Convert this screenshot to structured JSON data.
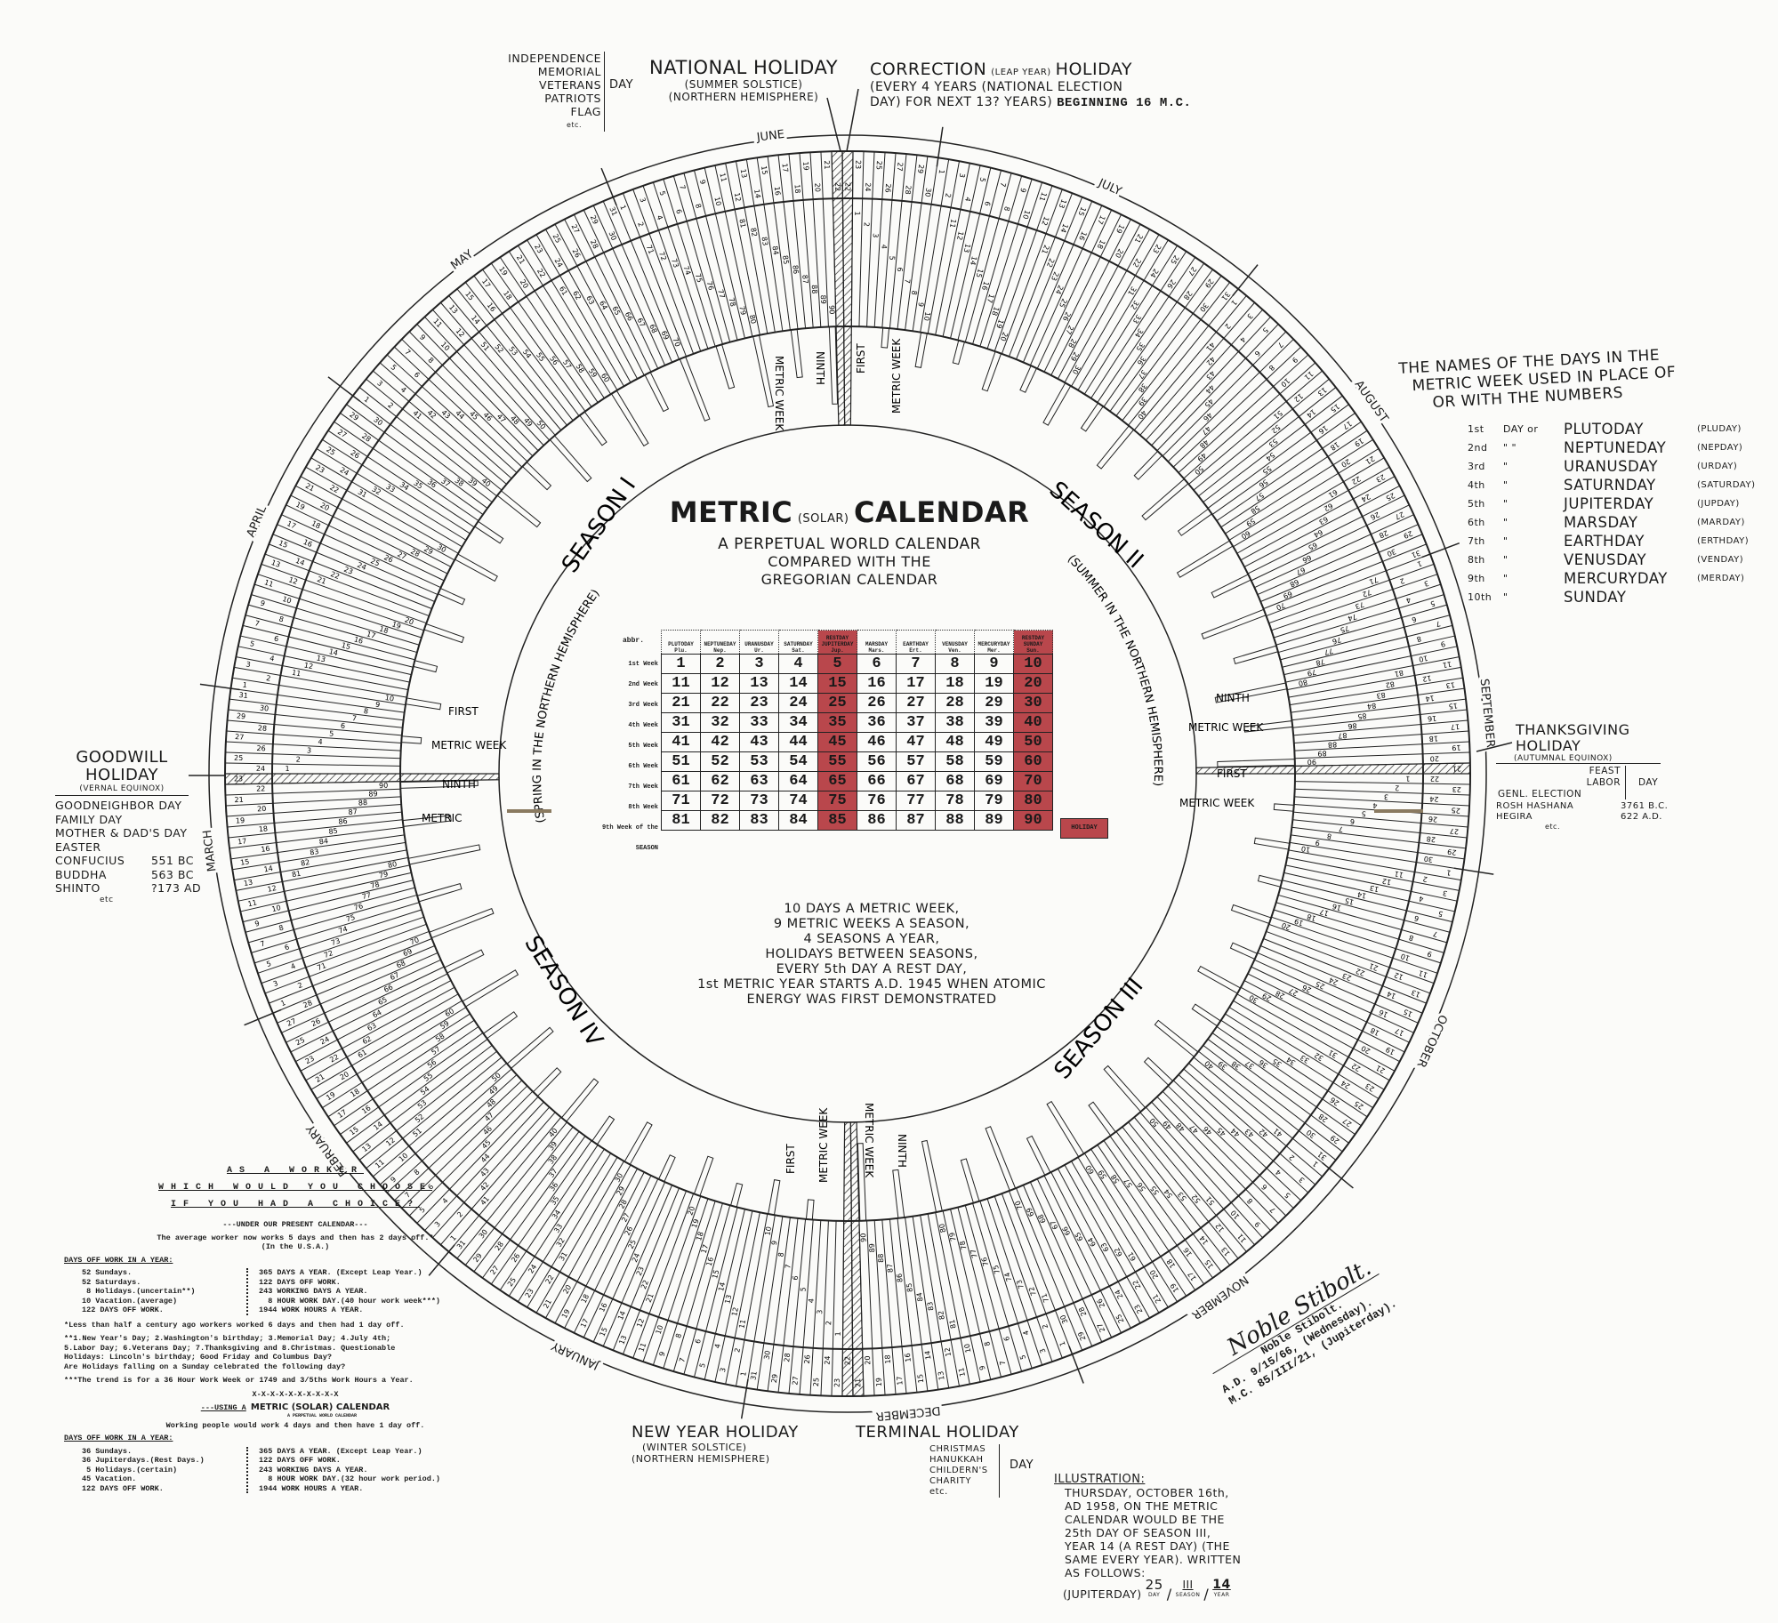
{
  "title": {
    "main_a": "METRIC",
    "main_b": "(SOLAR)",
    "main_c": "CALENDAR",
    "sub1": "A PERPETUAL WORLD CALENDAR",
    "sub2": "COMPARED WITH THE",
    "sub3": "GREGORIAN CALENDAR"
  },
  "colors": {
    "rest_day": "#b9474c",
    "ink": "#1a1a1a",
    "paper": "#fbfbf9"
  },
  "top_left_days": {
    "items": [
      "INDEPENDENCE",
      "MEMORIAL",
      "VETERANS",
      "PATRIOTS",
      "FLAG",
      "etc."
    ],
    "suffix": "DAY"
  },
  "national_holiday": {
    "title": "NATIONAL HOLIDAY",
    "line1": "(SUMMER SOLSTICE)",
    "line2": "(NORTHERN HEMISPHERE)"
  },
  "correction_holiday": {
    "title_a": "CORRECTION",
    "title_b": "(LEAP YEAR)",
    "title_c": "HOLIDAY",
    "line1": "(EVERY 4 YEARS (NATIONAL ELECTION",
    "line2": "DAY) FOR NEXT 13? YEARS)",
    "line2b": "BEGINNING 16 M.C."
  },
  "day_names": {
    "heading1": "THE NAMES OF THE DAYS IN THE",
    "heading2": "METRIC WEEK USED IN PLACE OF",
    "heading3": "OR WITH THE NUMBERS",
    "items": [
      {
        "ord": "1st",
        "sep": "DAY or",
        "name": "PLUTODAY",
        "abbr": "(PLUDAY)"
      },
      {
        "ord": "2nd",
        "sep": "\" \"",
        "name": "NEPTUNEDAY",
        "abbr": "(NEPDAY)"
      },
      {
        "ord": "3rd",
        "sep": "\"",
        "name": "URANUSDAY",
        "abbr": "(URDAY)"
      },
      {
        "ord": "4th",
        "sep": "\"",
        "name": "SATURNDAY",
        "abbr": "(SATURDAY)"
      },
      {
        "ord": "5th",
        "sep": "\"",
        "name": "JUPITERDAY",
        "abbr": "(JUPDAY)"
      },
      {
        "ord": "6th",
        "sep": "\"",
        "name": "MARSDAY",
        "abbr": "(MARDAY)"
      },
      {
        "ord": "7th",
        "sep": "\"",
        "name": "EARTHDAY",
        "abbr": "(ERTHDAY)"
      },
      {
        "ord": "8th",
        "sep": "\"",
        "name": "VENUSDAY",
        "abbr": "(VENDAY)"
      },
      {
        "ord": "9th",
        "sep": "\"",
        "name": "MERCURYDAY",
        "abbr": "(MERDAY)"
      },
      {
        "ord": "10th",
        "sep": "\"",
        "name": "SUNDAY",
        "abbr": ""
      }
    ]
  },
  "thanksgiving": {
    "title1": "THANKSGIVING",
    "title2": "HOLIDAY",
    "sub": "(AUTUMNAL EQUINOX)",
    "bracket_items": [
      "FEAST",
      "LABOR",
      "GENL. ELECTION"
    ],
    "bracket_suffix": "DAY",
    "items": [
      {
        "name": "ROSH HASHANA",
        "year": "3761 B.C."
      },
      {
        "name": "HEGIRA",
        "year": "622 A.D."
      }
    ],
    "etc": "etc."
  },
  "goodwill": {
    "title1": "GOODWILL",
    "title2": "HOLIDAY",
    "sub": "(VERNAL EQUINOX)",
    "items": [
      {
        "name": "GOODNEIGHBOR DAY",
        "year": ""
      },
      {
        "name": "FAMILY DAY",
        "year": ""
      },
      {
        "name": "MOTHER & DAD'S DAY",
        "year": ""
      },
      {
        "name": "EASTER",
        "year": ""
      },
      {
        "name": "CONFUCIUS",
        "year": "551 BC"
      },
      {
        "name": "BUDDHA",
        "year": "563 BC"
      },
      {
        "name": "SHINTO",
        "year": "?173 AD"
      }
    ],
    "etc": "etc"
  },
  "new_year": {
    "title": "NEW YEAR HOLIDAY",
    "line1": "(WINTER SOLSTICE)",
    "line2": "(NORTHERN HEMISPHERE)"
  },
  "terminal": {
    "title": "TERMINAL HOLIDAY",
    "items": [
      "CHRISTMAS",
      "HANUKKAH",
      "CHILDERN'S",
      "CHARITY",
      "etc."
    ],
    "suffix": "DAY"
  },
  "center_facts": [
    "10 DAYS A METRIC WEEK,",
    "9 METRIC WEEKS A SEASON,",
    "4 SEASONS A YEAR,",
    "HOLIDAYS BETWEEN SEASONS,",
    "EVERY 5th DAY A REST DAY,",
    "1st METRIC YEAR STARTS A.D. 1945 WHEN ATOMIC",
    "ENERGY WAS FIRST DEMONSTRATED"
  ],
  "seasons": [
    "SEASON I",
    "SEASON II",
    "SEASON III",
    "SEASON IV"
  ],
  "hemisphere": {
    "spring": "(SPRING IN THE NORTHERN HEMISPHERE)",
    "summer": "(SUMMER IN THE NORTHERN HEMISPHERE)"
  },
  "week_labels": {
    "first": "FIRST",
    "metric_week": "METRIC WEEK",
    "ninth": "NINTH",
    "metric": "METRIC"
  },
  "months": [
    "JANUARY",
    "FEBRUARY",
    "MARCH",
    "APRIL",
    "MAY",
    "JUNE",
    "JULY",
    "AUGUST",
    "SEPTEMBER",
    "OCTOBER",
    "NOVEMBER",
    "DECEMBER"
  ],
  "table": {
    "abbr_label": "abbr.",
    "columns": [
      {
        "name": "PLUTODAY",
        "abbr": "Plu.",
        "rest": false
      },
      {
        "name": "NEPTUNEDAY",
        "abbr": "Nep.",
        "rest": false
      },
      {
        "name": "URANUSDAY",
        "abbr": "Ur.",
        "rest": false
      },
      {
        "name": "SATURNDAY",
        "abbr": "Sat.",
        "rest": false
      },
      {
        "name": "RESTDAY JUPITERDAY",
        "abbr": "Jup.",
        "rest": true
      },
      {
        "name": "MARSDAY",
        "abbr": "Mars.",
        "rest": false
      },
      {
        "name": "EARTHDAY",
        "abbr": "Ert.",
        "rest": false
      },
      {
        "name": "VENUSDAY",
        "abbr": "Ven.",
        "rest": false
      },
      {
        "name": "MERCURYDAY",
        "abbr": "Mer.",
        "rest": false
      },
      {
        "name": "RESTDAY SUNDAY",
        "abbr": "Sun.",
        "rest": true
      }
    ],
    "row_labels": [
      "1st Week",
      "2nd Week",
      "3rd Week",
      "4th Week",
      "5th Week",
      "6th Week",
      "7th Week",
      "8th Week",
      "9th Week of the SEASON"
    ],
    "rows": [
      [
        1,
        2,
        3,
        4,
        5,
        6,
        7,
        8,
        9,
        10
      ],
      [
        11,
        12,
        13,
        14,
        15,
        16,
        17,
        18,
        19,
        20
      ],
      [
        21,
        22,
        23,
        24,
        25,
        26,
        27,
        28,
        29,
        30
      ],
      [
        31,
        32,
        33,
        34,
        35,
        36,
        37,
        38,
        39,
        40
      ],
      [
        41,
        42,
        43,
        44,
        45,
        46,
        47,
        48,
        49,
        50
      ],
      [
        51,
        52,
        53,
        54,
        55,
        56,
        57,
        58,
        59,
        60
      ],
      [
        61,
        62,
        63,
        64,
        65,
        66,
        67,
        68,
        69,
        70
      ],
      [
        71,
        72,
        73,
        74,
        75,
        76,
        77,
        78,
        79,
        80
      ],
      [
        81,
        82,
        83,
        84,
        85,
        86,
        87,
        88,
        89,
        90
      ]
    ],
    "holiday_cell": "HOLIDAY"
  },
  "worker": {
    "h1": "AS A WORKER",
    "h2": "WHICH WOULD YOU CHOOSE",
    "h3": "IF YOU HAD A CHOICE?",
    "present_heading": "---UNDER OUR PRESENT CALENDAR---",
    "present_intro1": "The average worker now works 5 days and then has 2 days off.*",
    "present_intro2": "(In the U.S.A.)",
    "days_off_heading": "DAYS OFF WORK IN A YEAR:",
    "present_left": "52 Sundays.\n52 Saturdays.\n 8 Holidays.(uncertain**)\n10 Vacation.(average)\n122 DAYS OFF WORK.",
    "present_right": "365 DAYS A YEAR. (Except Leap Year.)\n122 DAYS OFF WORK.\n243 WORKING DAYS A YEAR.\n  8 HOUR WORK DAY.(40 hour work week***)\n1944 WORK HOURS A YEAR.",
    "note1": "*Less than half a century ago workers worked 6 days and then had 1 day off.",
    "note2": "**1.New Year's Day; 2.Washington's birthday; 3.Memorial Day; 4.July 4th;\n5.Labor Day; 6.Veterans Day; 7.Thanksgiving and 8.Christmas. Questionable\nHolidays: Lincoln's birthday; Good Friday and Columbus Day?\nAre Holidays falling on a Sunday celebrated the following day?",
    "note3": "***The trend is for a 36 Hour Work Week or 1749 and 3/5ths Work Hours a Year.",
    "divider": "X-X-X-X-X-X-X-X-X-X",
    "metric_heading_a": "---USING A",
    "metric_heading_b": "METRIC (SOLAR) CALENDAR",
    "metric_heading_sub": "A PERPETUAL WORLD CALENDAR",
    "metric_intro": "Working people would work 4 days and then have 1 day off.",
    "metric_left": "36 Sundays.\n36 Jupiterdays.(Rest Days.)\n 5 Holidays.(certain)\n45 Vacation.\n122 DAYS OFF WORK.",
    "metric_right": "365 DAYS A YEAR. (Except Leap Year.)\n122 DAYS OFF WORK.\n243 WORKING DAYS A YEAR.\n  8 HOUR WORK DAY.(32 hour work period.)\n1944 WORK HOURS A YEAR."
  },
  "illustration": {
    "heading": "ILLUSTRATION:",
    "lines": [
      "THURSDAY, OCTOBER 16th,",
      "AD 1958, ON THE METRIC",
      "CALENDAR WOULD BE THE",
      "25th DAY OF SEASON III,",
      "YEAR 14 (A REST DAY) (THE",
      "SAME EVERY YEAR). WRITTEN",
      "AS FOLLOWS:"
    ],
    "day_name": "(JUPITERDAY)",
    "day": "25",
    "season": "III",
    "year": "14",
    "day_label": "DAY",
    "season_label": "SEASON",
    "year_label": "YEAR"
  },
  "signature": {
    "name": "Noble Stibolt.",
    "line1": "A.D. 9/15/66, (Wednesday).",
    "line2": "M.C. 85/III/21, (Jupiterday)."
  }
}
